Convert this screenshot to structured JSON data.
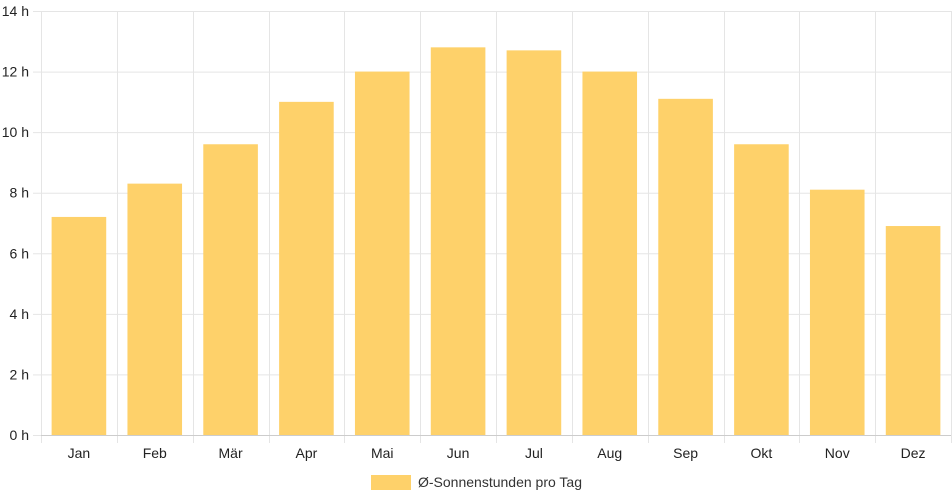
{
  "chart_data": {
    "type": "bar",
    "categories": [
      "Jan",
      "Feb",
      "Mär",
      "Apr",
      "Mai",
      "Jun",
      "Jul",
      "Aug",
      "Sep",
      "Okt",
      "Nov",
      "Dez"
    ],
    "series": [
      {
        "name": "Ø-Sonnenstunden pro Tag",
        "values": [
          7.2,
          8.3,
          9.6,
          11.0,
          12.0,
          12.8,
          12.7,
          12.0,
          11.1,
          9.6,
          8.1,
          6.9
        ]
      }
    ],
    "ylim": [
      0,
      14
    ],
    "yticks": [
      0,
      2,
      4,
      6,
      8,
      10,
      12,
      14
    ],
    "ytick_suffix": " h",
    "grid": true,
    "legend_position": "bottom",
    "colors": {
      "bar_fill": "#fed16a",
      "grid": "#e5e5e5",
      "text": "#222222"
    }
  }
}
